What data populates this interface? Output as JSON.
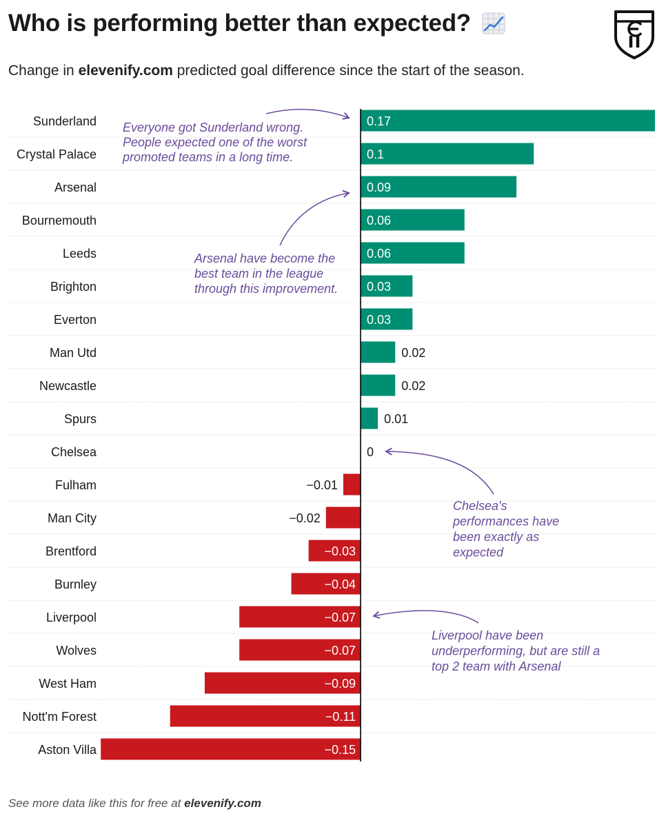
{
  "header": {
    "title": "Who is performing better than expected?",
    "subtitle_prefix": "Change in ",
    "subtitle_brand": "elevenify.com",
    "subtitle_suffix": " predicted goal difference since the start of the season."
  },
  "footer": {
    "prefix": "See more data like this for free at ",
    "brand": "elevenify.com"
  },
  "icons": {
    "title_icon": "chart-increasing-icon",
    "logo": "elevenify-shield-logo"
  },
  "colors": {
    "positive": "#008f72",
    "negative": "#c8191f",
    "annotation": "#6a4c9c",
    "axis": "#000000",
    "grid": "#dddddd"
  },
  "chart_data": {
    "type": "bar",
    "orientation": "horizontal",
    "title": "Who is performing better than expected?",
    "subtitle": "Change in elevenify.com predicted goal difference since the start of the season.",
    "categories": [
      "Sunderland",
      "Crystal Palace",
      "Arsenal",
      "Bournemouth",
      "Leeds",
      "Brighton",
      "Everton",
      "Man Utd",
      "Newcastle",
      "Spurs",
      "Chelsea",
      "Fulham",
      "Man City",
      "Brentford",
      "Burnley",
      "Liverpool",
      "Wolves",
      "West Ham",
      "Nott'm Forest",
      "Aston Villa"
    ],
    "values": [
      0.17,
      0.1,
      0.09,
      0.06,
      0.06,
      0.03,
      0.03,
      0.02,
      0.02,
      0.01,
      0,
      -0.01,
      -0.02,
      -0.03,
      -0.04,
      -0.07,
      -0.07,
      -0.09,
      -0.11,
      -0.15
    ],
    "value_labels": [
      "0.17",
      "0.1",
      "0.09",
      "0.06",
      "0.06",
      "0.03",
      "0.03",
      "0.02",
      "0.02",
      "0.01",
      "0",
      "−0.01",
      "−0.02",
      "−0.03",
      "−0.04",
      "−0.07",
      "−0.07",
      "−0.09",
      "−0.11",
      "−0.15"
    ],
    "xlim": [
      -0.15,
      0.17
    ],
    "grid": "horizontal dotted row separators",
    "annotations": [
      {
        "target": "Sunderland",
        "lines": [
          "Everyone got Sunderland wrong.",
          "People expected one of the worst",
          "promoted teams in a long time."
        ]
      },
      {
        "target": "Arsenal",
        "lines": [
          "Arsenal have become the",
          "best team in the league",
          "through this improvement."
        ]
      },
      {
        "target": "Chelsea",
        "lines": [
          "Chelsea's",
          "performances have",
          "been exactly as",
          "expected"
        ]
      },
      {
        "target": "Liverpool",
        "lines": [
          "Liverpool have been",
          "underperforming, but are still a",
          "top 2 team with Arsenal"
        ]
      }
    ]
  }
}
